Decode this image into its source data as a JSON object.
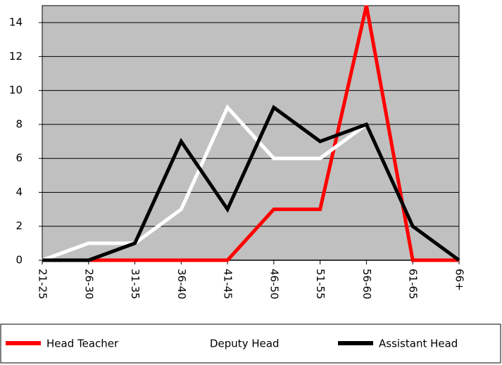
{
  "chart_data": {
    "type": "line",
    "categories": [
      "21-25",
      "26-30",
      "31-35",
      "36-40",
      "41-45",
      "46-50",
      "51-55",
      "56-60",
      "61-65",
      "66+"
    ],
    "series": [
      {
        "name": "Head Teacher",
        "color": "#ff0000",
        "values": [
          0,
          0,
          0,
          0,
          0,
          3,
          3,
          15,
          0,
          0
        ]
      },
      {
        "name": "Deputy Head",
        "color": "#ffffff",
        "values": [
          0,
          1,
          1,
          3,
          9,
          6,
          6,
          8,
          2,
          0
        ]
      },
      {
        "name": "Assistant Head",
        "color": "#000000",
        "values": [
          0,
          0,
          1,
          7,
          3,
          9,
          7,
          8,
          2,
          0
        ]
      }
    ],
    "ylim": [
      0,
      15
    ],
    "yticks": [
      0,
      2,
      4,
      6,
      8,
      10,
      12,
      14
    ],
    "grid": true,
    "legend": "bottom"
  }
}
